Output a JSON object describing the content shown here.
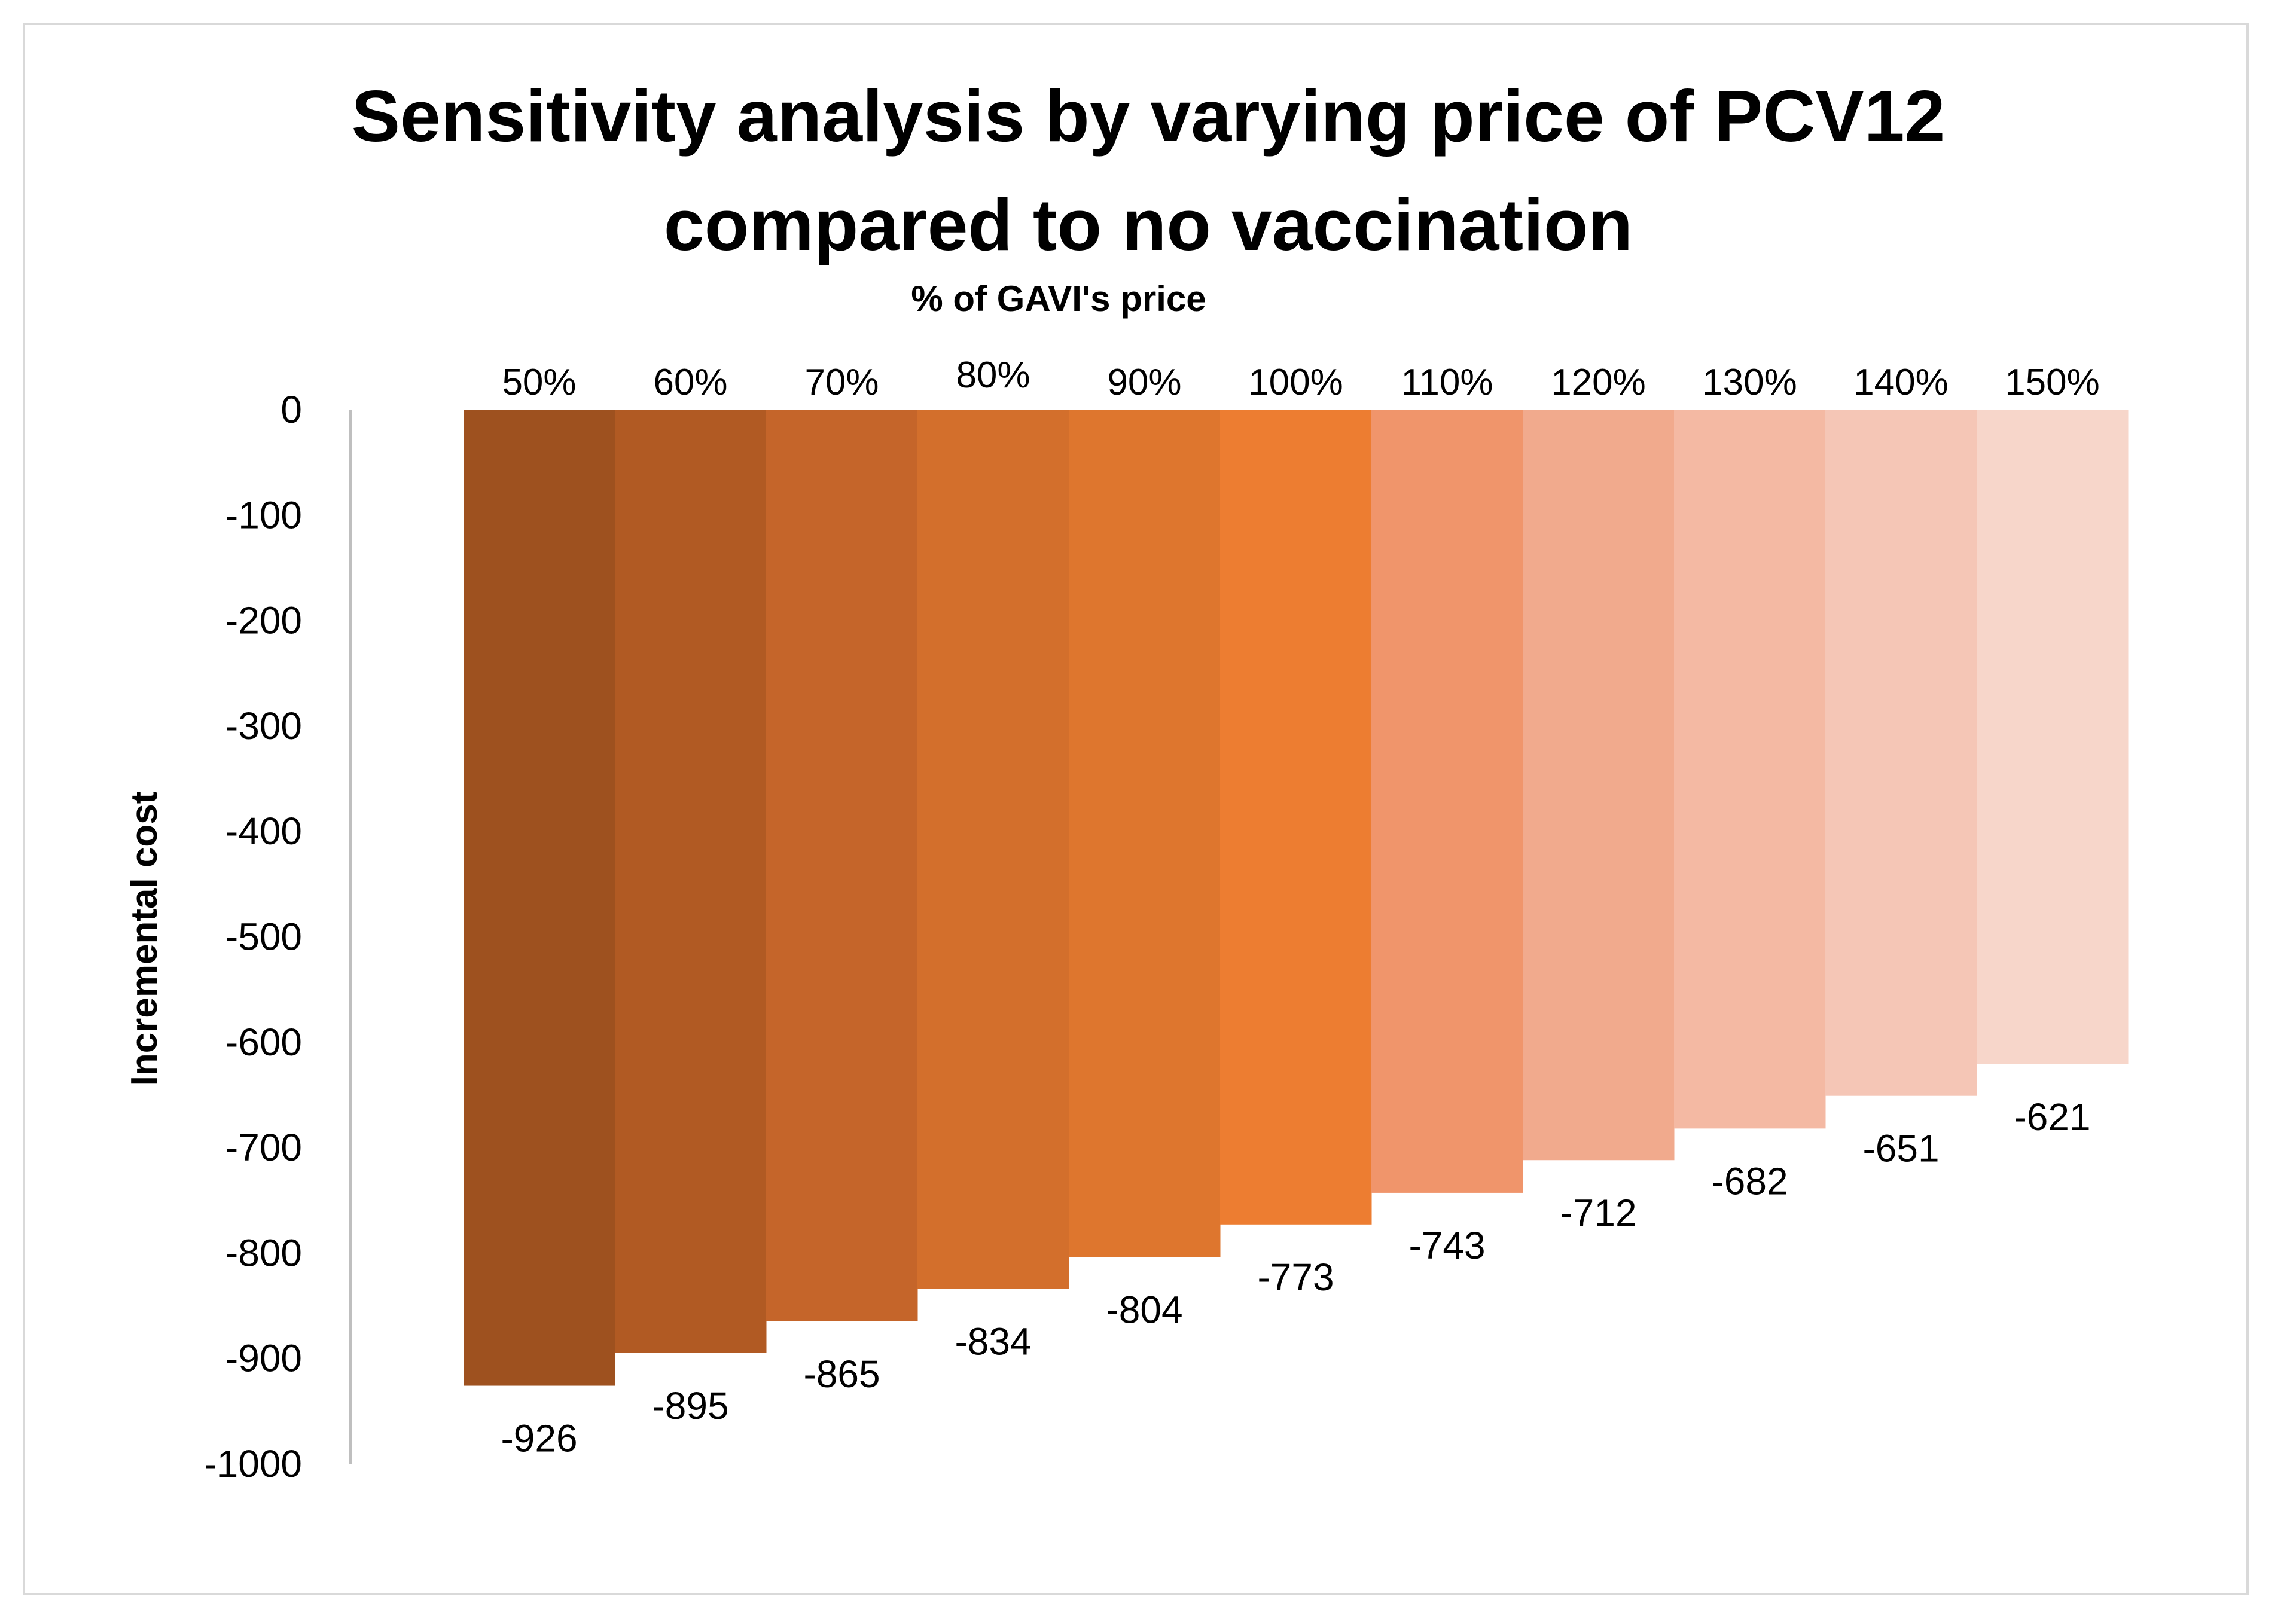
{
  "chart_data": {
    "type": "bar",
    "title": "Sensitivity analysis by varying price of PCV12",
    "title_line2": "compared to no vaccination",
    "xlabel": "% of GAVI's price",
    "ylabel": "Incremental cost",
    "ylim": [
      -1000,
      0
    ],
    "yticks": [
      "0",
      "-100",
      "-200",
      "-300",
      "-400",
      "-500",
      "-600",
      "-700",
      "-800",
      "-900",
      "-1000"
    ],
    "ytick_values": [
      0,
      -100,
      -200,
      -300,
      -400,
      -500,
      -600,
      -700,
      -800,
      -900,
      -1000
    ],
    "categories": [
      "50%",
      "60%",
      "70%",
      "80%",
      "90%",
      "100%",
      "110%",
      "120%",
      "130%",
      "140%",
      "150%"
    ],
    "values": [
      -926,
      -895,
      -865,
      -834,
      -804,
      -773,
      -743,
      -712,
      -682,
      -651,
      -621
    ],
    "data_labels": [
      "-926",
      "-895",
      "-865",
      "-834",
      "-804",
      "-773",
      "-743",
      "-712",
      "-682",
      "-651",
      "-621"
    ],
    "colors": [
      "#9e511f",
      "#b15a23",
      "#c5652a",
      "#d36f2c",
      "#de762e",
      "#ed7d31",
      "#f0956b",
      "#f1aa8d",
      "#f4b9a3",
      "#f5c6b6",
      "#f7d6ca"
    ],
    "axis_color": "#bfbfbf",
    "legend": "none",
    "grid": false
  }
}
